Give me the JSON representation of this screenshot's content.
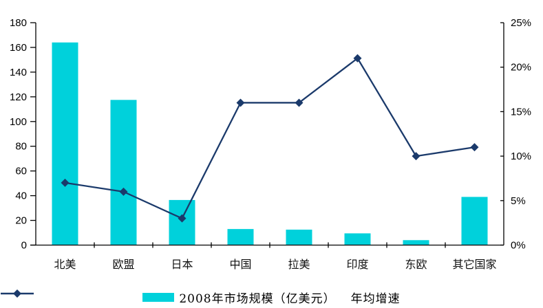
{
  "chart_data": {
    "type": "bar",
    "subtype": "combo-bar-line",
    "title": "",
    "categories": [
      "北美",
      "欧盟",
      "日本",
      "中国",
      "拉美",
      "印度",
      "东欧",
      "其它国家"
    ],
    "series": [
      {
        "name": "2008年市场规模（亿美元）",
        "type": "bar",
        "axis": "left",
        "values": [
          164,
          117.5,
          36.5,
          13,
          12.5,
          9.5,
          4,
          39
        ],
        "color": "#00D1DB"
      },
      {
        "name": "年均增速",
        "type": "line",
        "axis": "right",
        "unit": "%",
        "values": [
          7,
          6,
          3,
          16,
          16,
          21,
          10,
          11
        ],
        "color": "#1B3A6B",
        "marker": "diamond"
      }
    ],
    "left_axis": {
      "min": 0,
      "max": 180,
      "step": 20,
      "tick_labels": [
        "0",
        "20",
        "40",
        "60",
        "80",
        "100",
        "120",
        "140",
        "160",
        "180"
      ]
    },
    "right_axis": {
      "min": 0,
      "max": 25,
      "step": 5,
      "tick_labels": [
        "0%",
        "5%",
        "10%",
        "15%",
        "20%",
        "25%"
      ]
    },
    "grid": false,
    "legend_position": "bottom",
    "axis_color": "#000000",
    "background_color": "#ffffff"
  },
  "legend": {
    "bar_label": "2008年市场规模（亿美元）",
    "line_label": "年均增速"
  }
}
